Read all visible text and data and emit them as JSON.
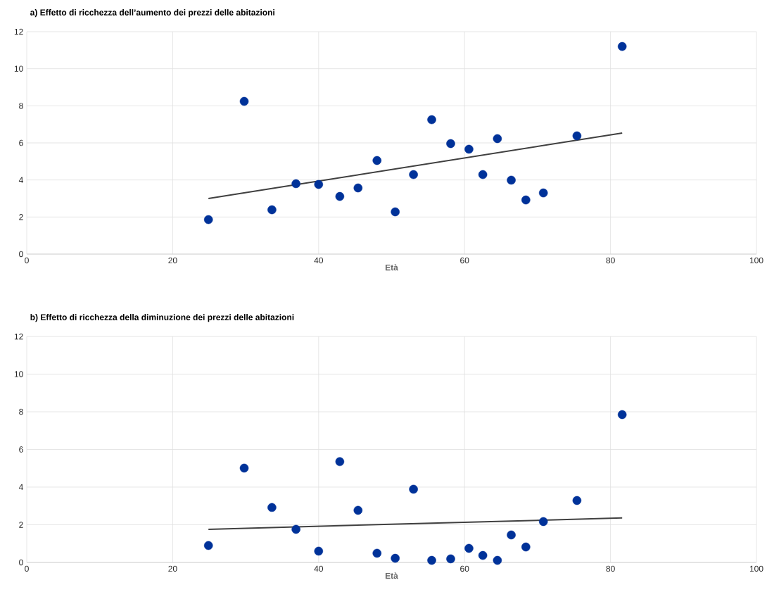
{
  "chart_data": [
    {
      "type": "scatter",
      "title": "a) Effetto di ricchezza dell’aumento dei prezzi delle abitazioni",
      "xlabel": "Età",
      "xlim": [
        0,
        100
      ],
      "xticks": [
        0,
        20,
        40,
        60,
        80,
        100
      ],
      "ylim": [
        0,
        12
      ],
      "yticks": [
        0,
        2,
        4,
        6,
        8,
        10,
        12
      ],
      "grid": true,
      "marker": "circle",
      "series": [
        {
          "type": "scatter",
          "color": "#003299",
          "x": [
            24.9,
            29.8,
            33.6,
            36.9,
            40.0,
            42.9,
            45.4,
            48.0,
            50.5,
            53.0,
            55.5,
            58.1,
            60.6,
            62.5,
            64.5,
            66.4,
            68.4,
            70.8,
            75.4,
            81.6
          ],
          "values": [
            1.86,
            8.24,
            2.39,
            3.8,
            3.76,
            3.11,
            3.57,
            5.05,
            2.28,
            4.29,
            7.25,
            5.96,
            5.66,
            4.29,
            6.23,
            3.99,
            2.92,
            3.3,
            6.38,
            11.2
          ]
        },
        {
          "type": "line",
          "color": "#404040",
          "marker": "none",
          "x": [
            24.9,
            81.6
          ],
          "values": [
            3.0,
            6.53
          ]
        }
      ]
    },
    {
      "type": "scatter",
      "title": "b) Effetto di ricchezza della diminuzione dei prezzi delle abitazioni",
      "xlabel": "Età",
      "xlim": [
        0,
        100
      ],
      "xticks": [
        0,
        20,
        40,
        60,
        80,
        100
      ],
      "ylim": [
        0,
        12
      ],
      "yticks": [
        0,
        2,
        4,
        6,
        8,
        10,
        12
      ],
      "grid": true,
      "marker": "circle",
      "series": [
        {
          "type": "scatter",
          "color": "#003299",
          "x": [
            24.9,
            29.8,
            33.6,
            36.9,
            40.0,
            42.9,
            45.4,
            48.0,
            50.5,
            53.0,
            55.5,
            58.1,
            60.6,
            62.5,
            64.5,
            66.4,
            68.4,
            70.8,
            75.4,
            81.6
          ],
          "values": [
            0.9,
            5.01,
            2.92,
            1.76,
            0.6,
            5.35,
            2.77,
            0.49,
            0.22,
            3.89,
            0.11,
            0.19,
            0.75,
            0.37,
            0.11,
            1.46,
            0.82,
            2.17,
            3.29,
            7.85
          ]
        },
        {
          "type": "line",
          "color": "#404040",
          "marker": "none",
          "x": [
            24.9,
            81.6
          ],
          "values": [
            1.76,
            2.36
          ]
        }
      ]
    }
  ]
}
